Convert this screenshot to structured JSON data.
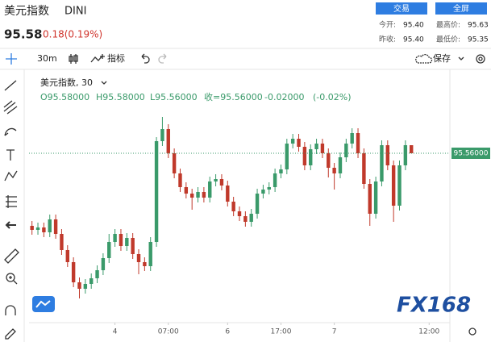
{
  "header": {
    "title": "美元指数",
    "symbol": "DINI",
    "price": "95.58",
    "change": "0.18(0.19%)",
    "buttons": [
      "交易",
      "全屏"
    ],
    "stats": [
      {
        "label": "今开:",
        "value": "95.40"
      },
      {
        "label": "最高价:",
        "value": "95.63"
      },
      {
        "label": "昨收:",
        "value": "95.40"
      },
      {
        "label": "最低价:",
        "value": "95.35"
      }
    ]
  },
  "toolbar": {
    "interval": "30m",
    "indicators": "指标",
    "save": "保存"
  },
  "chart_data": {
    "type": "candlestick",
    "legend_title": "美元指数, 30",
    "legend": [
      "O95.58000",
      "H95.58000",
      "L95.56000",
      "收=95.56000",
      "-0.02000",
      "(-0.02%)"
    ],
    "watermark": "FX168",
    "up_color": "#3a9a6a",
    "down_color": "#c0392b",
    "open": [
      95.38,
      95.37,
      95.376,
      95.364,
      95.396,
      95.36,
      95.32,
      95.29,
      95.24,
      95.224,
      95.236,
      95.25,
      95.27,
      95.3,
      95.34,
      95.36,
      95.33,
      95.35,
      95.31,
      95.29,
      95.28,
      95.34,
      95.59,
      95.62,
      95.56,
      95.51,
      95.476,
      95.46,
      95.45,
      95.464,
      95.45,
      95.49,
      95.496,
      95.48,
      95.44,
      95.416,
      95.404,
      95.39,
      95.41,
      95.46,
      95.47,
      95.476,
      95.51,
      95.52,
      95.584,
      95.596,
      95.576,
      95.53,
      95.57,
      95.584,
      95.56,
      95.524,
      95.51,
      95.55,
      95.584,
      95.61,
      95.56,
      95.484,
      95.41,
      95.49,
      95.58,
      95.53,
      95.43,
      95.53,
      95.58
    ],
    "high": [
      95.392,
      95.388,
      95.388,
      95.408,
      95.408,
      95.372,
      95.332,
      95.302,
      95.252,
      95.248,
      95.262,
      95.282,
      95.312,
      95.36,
      95.372,
      95.372,
      95.362,
      95.362,
      95.322,
      95.302,
      95.352,
      95.6,
      95.65,
      95.632,
      95.572,
      95.522,
      95.488,
      95.472,
      95.476,
      95.476,
      95.502,
      95.508,
      95.508,
      95.492,
      95.452,
      95.428,
      95.416,
      95.422,
      95.472,
      95.482,
      95.488,
      95.522,
      95.532,
      95.596,
      95.608,
      95.608,
      95.588,
      95.582,
      95.596,
      95.596,
      95.572,
      95.536,
      95.562,
      95.596,
      95.622,
      95.622,
      95.572,
      95.496,
      95.502,
      95.592,
      95.592,
      95.542,
      95.542,
      95.592,
      95.58
    ],
    "low": [
      95.358,
      95.358,
      95.352,
      95.352,
      95.348,
      95.308,
      95.278,
      95.228,
      95.2,
      95.212,
      95.224,
      95.238,
      95.258,
      95.288,
      95.328,
      95.318,
      95.318,
      95.298,
      95.26,
      95.268,
      95.268,
      95.328,
      95.578,
      95.548,
      95.498,
      95.464,
      95.448,
      95.42,
      95.438,
      95.438,
      95.438,
      95.478,
      95.468,
      95.428,
      95.404,
      95.392,
      95.378,
      95.378,
      95.398,
      95.448,
      95.458,
      95.464,
      95.498,
      95.508,
      95.572,
      95.564,
      95.518,
      95.518,
      95.558,
      95.548,
      95.5,
      95.47,
      95.498,
      95.538,
      95.572,
      95.548,
      95.472,
      95.38,
      95.398,
      95.478,
      95.518,
      95.39,
      95.418,
      95.518,
      95.56
    ],
    "close": [
      95.37,
      95.376,
      95.364,
      95.396,
      95.36,
      95.32,
      95.29,
      95.24,
      95.224,
      95.236,
      95.25,
      95.27,
      95.3,
      95.34,
      95.36,
      95.33,
      95.35,
      95.31,
      95.29,
      95.28,
      95.34,
      95.59,
      95.62,
      95.56,
      95.51,
      95.476,
      95.46,
      95.45,
      95.464,
      95.45,
      95.49,
      95.496,
      95.48,
      95.44,
      95.416,
      95.404,
      95.39,
      95.41,
      95.46,
      95.47,
      95.476,
      95.51,
      95.52,
      95.584,
      95.596,
      95.576,
      95.53,
      95.57,
      95.584,
      95.56,
      95.524,
      95.51,
      95.55,
      95.584,
      95.61,
      95.56,
      95.484,
      95.41,
      95.49,
      95.58,
      95.53,
      95.43,
      95.53,
      95.58,
      95.56
    ],
    "last_price": {
      "value": 95.56,
      "label": "95.56000"
    },
    "xlim": [
      -0.5,
      70.5
    ],
    "xticks": [
      {
        "value": 14,
        "label": "4"
      },
      {
        "value": 23,
        "label": "07:00"
      },
      {
        "value": 33,
        "label": "6"
      },
      {
        "value": 42,
        "label": "17:00"
      },
      {
        "value": 51,
        "label": "7"
      },
      {
        "value": 67,
        "label": "12:00"
      }
    ],
    "ylim": [
      95.14,
      95.76
    ]
  }
}
